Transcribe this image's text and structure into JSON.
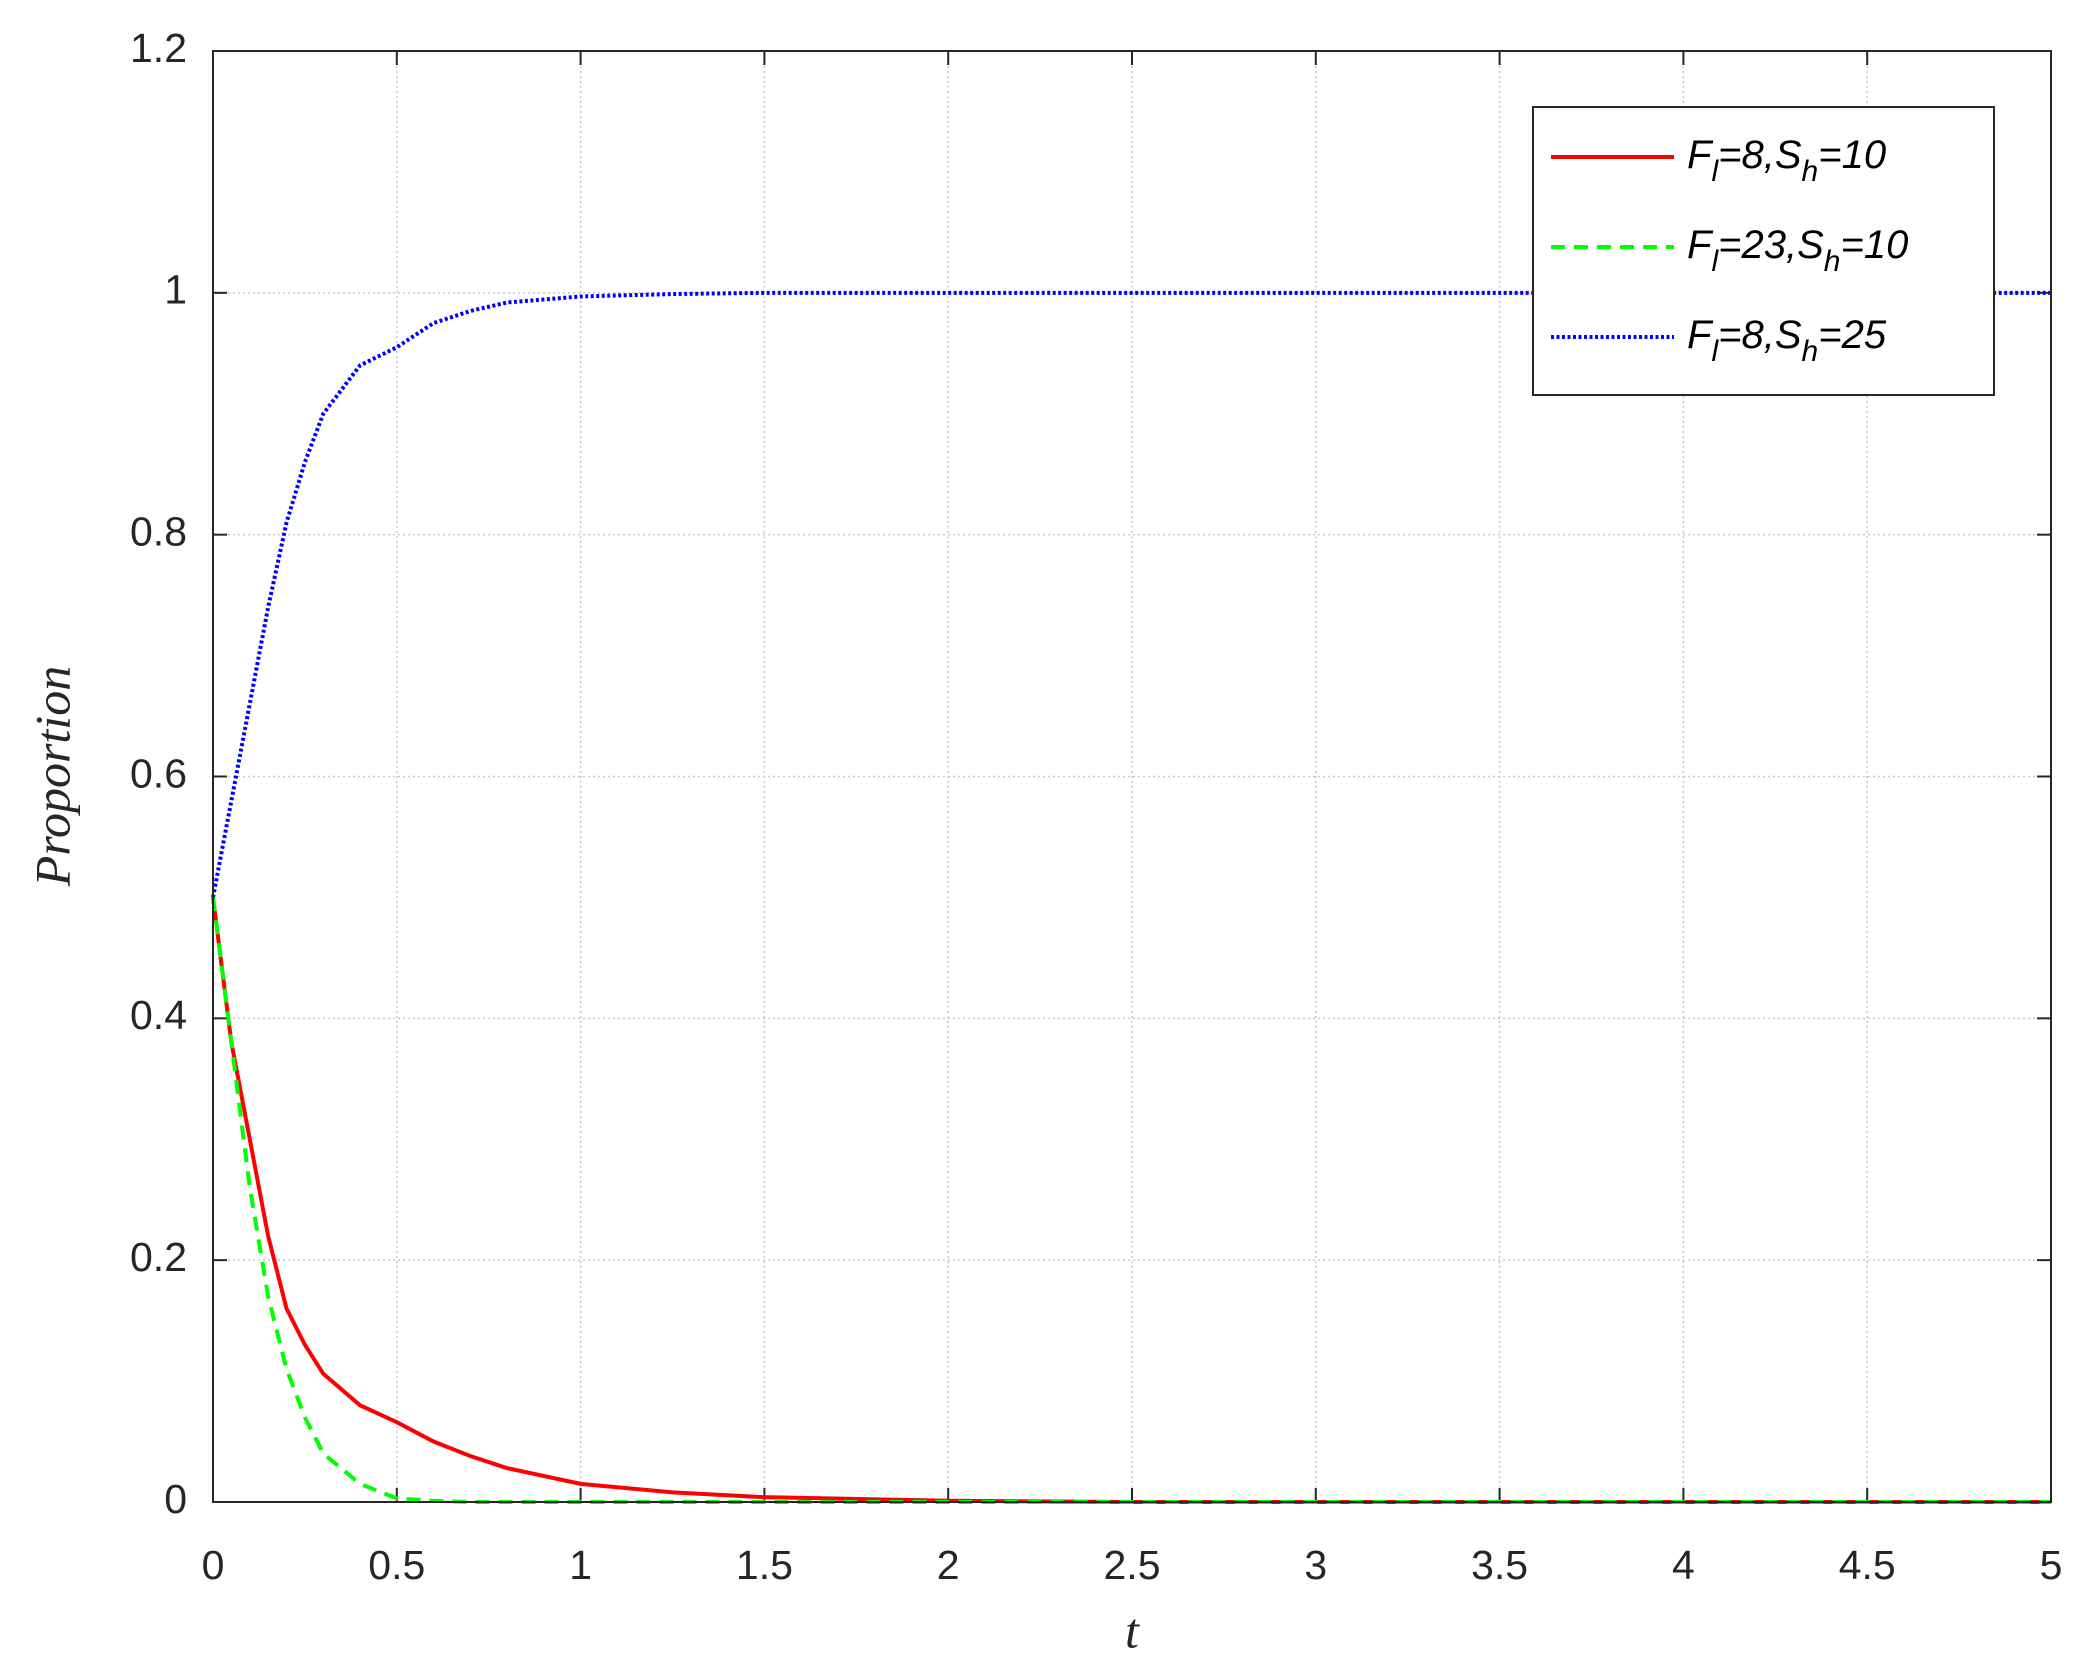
{
  "chart_data": {
    "type": "line",
    "x_label": "t",
    "y_label": "Proportion",
    "x": [
      0,
      0.05,
      0.1,
      0.15,
      0.2,
      0.25,
      0.3,
      0.4,
      0.5,
      0.6,
      0.7,
      0.8,
      1,
      1.25,
      1.5,
      2,
      2.5,
      3,
      4,
      5
    ],
    "series": [
      {
        "name": "Fl=8,Sh=10",
        "color": "#ff0000",
        "style": "solid",
        "values": [
          0.5,
          0.38,
          0.3,
          0.22,
          0.16,
          0.13,
          0.106,
          0.08,
          0.066,
          0.05,
          0.038,
          0.028,
          0.015,
          0.008,
          0.004,
          0.001,
          0,
          0,
          0,
          0
        ]
      },
      {
        "name": "Fl=23,Sh=10",
        "color": "#00ff00",
        "style": "dashed",
        "values": [
          0.5,
          0.38,
          0.26,
          0.17,
          0.11,
          0.07,
          0.04,
          0.015,
          0.003,
          0.001,
          0,
          0,
          0,
          0,
          0,
          0,
          0,
          0,
          0,
          0
        ]
      },
      {
        "name": "Fl=8,Sh=25",
        "color": "#0000ff",
        "style": "dotted",
        "values": [
          0.5,
          0.58,
          0.66,
          0.74,
          0.81,
          0.86,
          0.9,
          0.94,
          0.955,
          0.975,
          0.985,
          0.992,
          0.997,
          0.999,
          1,
          1,
          1,
          1,
          1,
          1
        ]
      }
    ],
    "xlim": [
      0,
      5
    ],
    "xticks": [
      0,
      0.5,
      1,
      1.5,
      2,
      2.5,
      3,
      3.5,
      4,
      4.5,
      5
    ],
    "ylim": [
      0,
      1.2
    ],
    "yticks": [
      0,
      0.2,
      0.4,
      0.6,
      0.8,
      1,
      1.2
    ],
    "grid": true,
    "legend": "upper right"
  }
}
